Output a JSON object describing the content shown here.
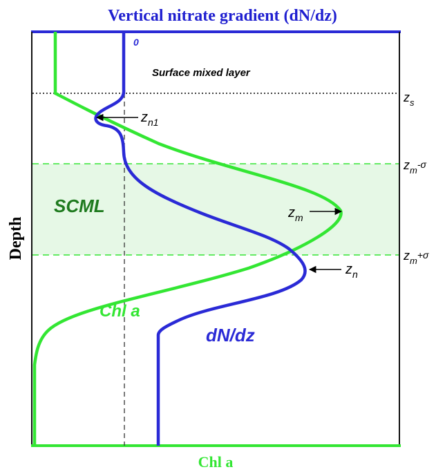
{
  "title": "Vertical nitrate gradient (dN/dz)",
  "xlabel": "Chl a",
  "ylabel": "Depth",
  "top_axis_zero": "0",
  "surface_layer_label": "Surface mixed layer",
  "scml_label": "SCML",
  "chl_curve_label": "Chl a",
  "dndz_curve_label": "dN/dz",
  "markers": {
    "zs": {
      "base": "z",
      "sub": "s"
    },
    "zn1": {
      "base": "z",
      "sub": "n1"
    },
    "zm_minus": {
      "base": "z",
      "sub": "m",
      "suffix": "-σ"
    },
    "zm": {
      "base": "z",
      "sub": "m"
    },
    "zm_plus": {
      "base": "z",
      "sub": "m",
      "suffix": "+σ"
    },
    "zn": {
      "base": "z",
      "sub": "n"
    }
  },
  "colors": {
    "chl": "#33e633",
    "dndz": "#2a2ad6",
    "title": "#1f1fd0",
    "scml_band": "#e6f8e6",
    "scml_text": "#1e7a1e",
    "chl_axis": "#33e633",
    "dndz_axis": "#2a2ad6"
  }
}
